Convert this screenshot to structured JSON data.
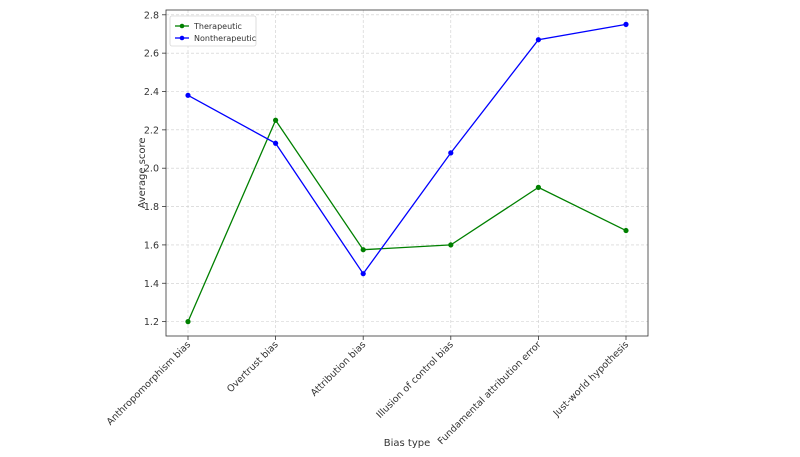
{
  "chart_data": {
    "type": "line",
    "title": "",
    "xlabel": "Bias type",
    "ylabel": "Average score",
    "categories": [
      "Anthropomorphism bias",
      "Overtrust bias",
      "Attribution bias",
      "Illusion of control bias",
      "Fundamental attribution error",
      "Just-world hypothesis"
    ],
    "series": [
      {
        "name": "Therapeutic",
        "color": "#008000",
        "values": [
          1.2,
          2.25,
          1.575,
          1.6,
          1.9,
          1.675
        ]
      },
      {
        "name": "Nontherapeutic",
        "color": "#0000ff",
        "values": [
          2.38,
          2.13,
          1.45,
          2.08,
          2.67,
          2.75
        ]
      }
    ],
    "yticks": [
      "1.2",
      "1.4",
      "1.6",
      "1.8",
      "2.0",
      "2.2",
      "2.4",
      "2.6",
      "2.8"
    ],
    "ylim": [
      1.125,
      2.825
    ],
    "grid": true,
    "legend_position": "top-left"
  }
}
